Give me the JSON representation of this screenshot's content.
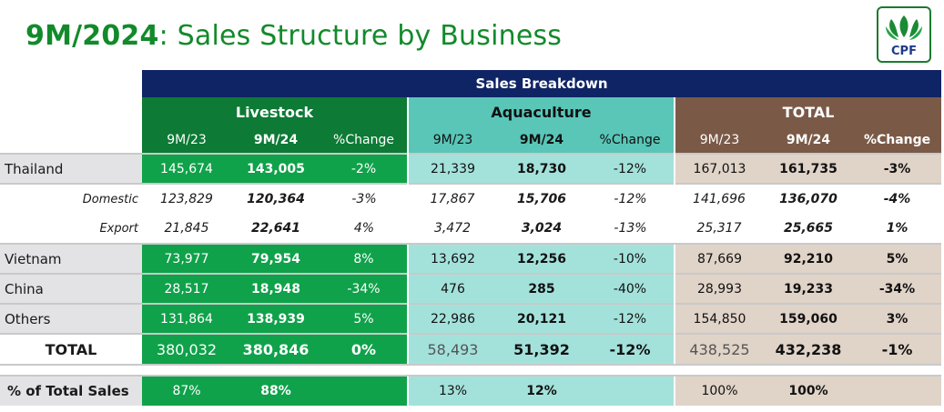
{
  "header": {
    "title_bold": "9M/2024",
    "title_rest": ": Sales Structure by Business"
  },
  "logo": {
    "text": "CPF",
    "icon": "cpf-leaf-logo-icon"
  },
  "table": {
    "band": "Sales Breakdown",
    "groups": [
      "Livestock",
      "Aquaculture",
      "TOTAL"
    ],
    "subheaders": [
      "9M/23",
      "9M/24",
      "%Change"
    ],
    "rows": {
      "thailand": {
        "label": "Thailand",
        "values": [
          "145,674",
          "143,005",
          "-2%",
          "21,339",
          "18,730",
          "-12%",
          "167,013",
          "161,735",
          "-3%"
        ]
      },
      "domestic": {
        "label": "Domestic",
        "values": [
          "123,829",
          "120,364",
          "-3%",
          "17,867",
          "15,706",
          "-12%",
          "141,696",
          "136,070",
          "-4%"
        ]
      },
      "export": {
        "label": "Export",
        "values": [
          "21,845",
          "22,641",
          "4%",
          "3,472",
          "3,024",
          "-13%",
          "25,317",
          "25,665",
          "1%"
        ]
      },
      "vietnam": {
        "label": "Vietnam",
        "values": [
          "73,977",
          "79,954",
          "8%",
          "13,692",
          "12,256",
          "-10%",
          "87,669",
          "92,210",
          "5%"
        ]
      },
      "china": {
        "label": "China",
        "values": [
          "28,517",
          "18,948",
          "-34%",
          "476",
          "285",
          "-40%",
          "28,993",
          "19,233",
          "-34%"
        ]
      },
      "others": {
        "label": "Others",
        "values": [
          "131,864",
          "138,939",
          "5%",
          "22,986",
          "20,121",
          "-12%",
          "154,850",
          "159,060",
          "3%"
        ]
      },
      "total": {
        "label": "TOTAL",
        "values": [
          "380,032",
          "380,846",
          "0%",
          "58,493",
          "51,392",
          "-12%",
          "438,525",
          "432,238",
          "-1%"
        ]
      }
    },
    "pct_total": {
      "label": "% of Total Sales",
      "values": [
        "87%",
        "88%",
        "13%",
        "12%",
        "100%",
        "100%"
      ]
    }
  },
  "colors": {
    "title": "#128a2b",
    "band": "#0f2465",
    "livestock": "#0d7a35",
    "aquaculture": "#59c6b8",
    "total": "#7a5a47"
  }
}
